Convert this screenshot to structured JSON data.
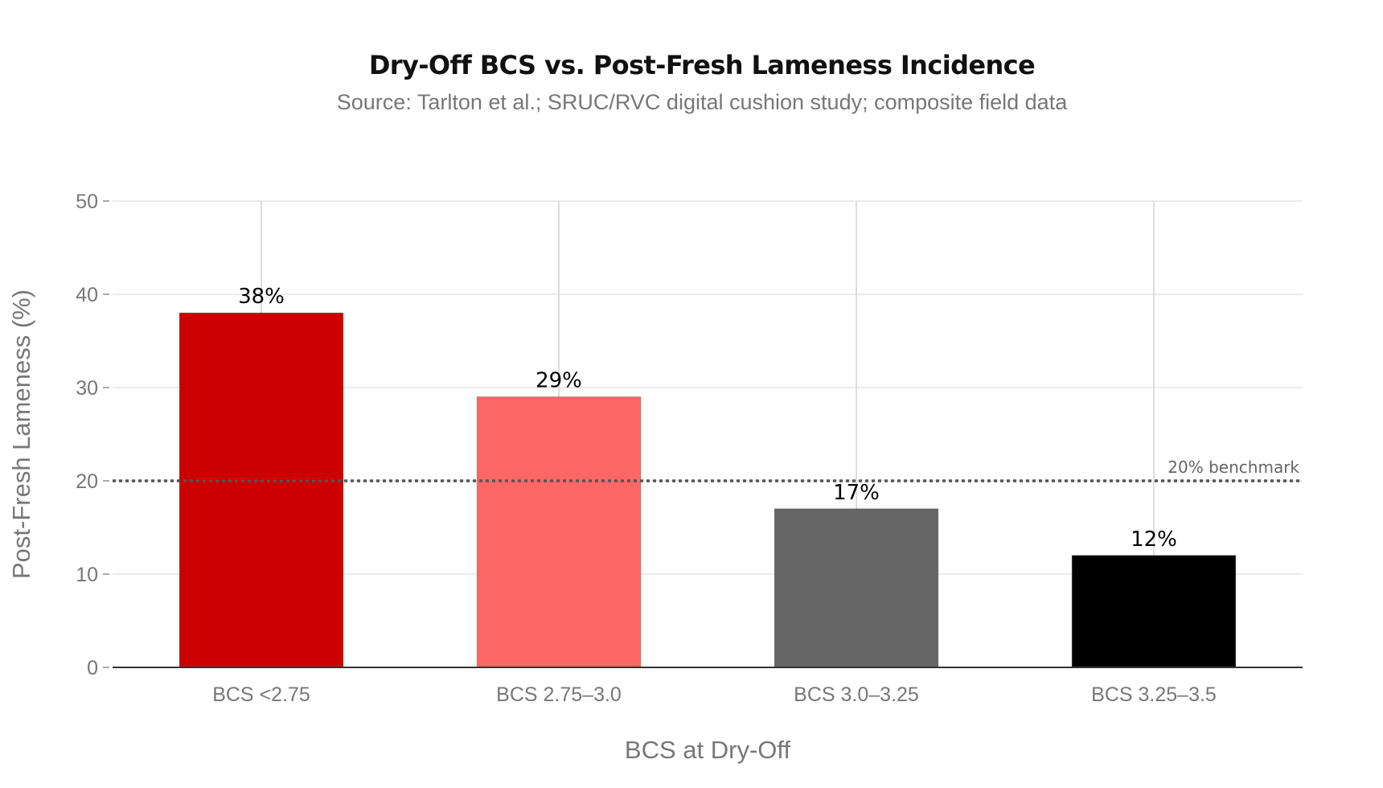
{
  "chart_data": {
    "type": "bar",
    "title": "Dry-Off BCS vs. Post-Fresh Lameness Incidence",
    "subtitle": "Source: Tarlton et al.; SRUC/RVC digital cushion study; composite field data",
    "xlabel": "BCS at Dry-Off",
    "ylabel": "Post-Fresh Lameness (%)",
    "categories": [
      "BCS <2.75",
      "BCS 2.75–3.0",
      "BCS 3.0–3.25",
      "BCS 3.25–3.5"
    ],
    "values": [
      38,
      29,
      17,
      12
    ],
    "value_labels": [
      "38%",
      "29%",
      "17%",
      "12%"
    ],
    "bar_colors": [
      "#cc0000",
      "#ff6666",
      "#666666",
      "#000000"
    ],
    "ylim": [
      0,
      50
    ],
    "yticks": [
      0,
      10,
      20,
      30,
      40,
      50
    ],
    "ytick_labels": [
      "0",
      "10",
      "20",
      "30",
      "40",
      "50"
    ],
    "grid": true,
    "reference_line": {
      "value": 20,
      "label": "20% benchmark",
      "style": "dotted",
      "color": "#555555"
    }
  }
}
